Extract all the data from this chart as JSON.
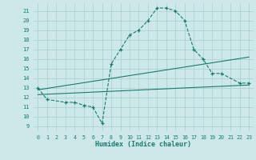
{
  "xlabel": "Humidex (Indice chaleur)",
  "bg_color": "#cde8e8",
  "line_color": "#1a7a6e",
  "grid_color": "#aacece",
  "xlim": [
    -0.5,
    23.5
  ],
  "ylim": [
    8.5,
    21.8
  ],
  "xticks": [
    0,
    1,
    2,
    3,
    4,
    5,
    6,
    7,
    8,
    9,
    10,
    11,
    12,
    13,
    14,
    15,
    16,
    17,
    18,
    19,
    20,
    21,
    22,
    23
  ],
  "yticks": [
    9,
    10,
    11,
    12,
    13,
    14,
    15,
    16,
    17,
    18,
    19,
    20,
    21
  ],
  "curve1_x": [
    0,
    1,
    3,
    4,
    5,
    6,
    7,
    8,
    9,
    10,
    11,
    12,
    13,
    14,
    15,
    16,
    17,
    18,
    19,
    20,
    22,
    23
  ],
  "curve1_y": [
    13,
    11.8,
    11.5,
    11.5,
    11.2,
    11.0,
    9.3,
    15.5,
    17.0,
    18.5,
    19.0,
    20.0,
    21.3,
    21.3,
    21.0,
    20.0,
    17.0,
    16.0,
    14.5,
    14.5,
    13.5,
    13.5
  ],
  "line2_x": [
    0,
    23
  ],
  "line2_y": [
    12.8,
    16.2
  ],
  "line3_x": [
    0,
    23
  ],
  "line3_y": [
    12.3,
    13.3
  ]
}
